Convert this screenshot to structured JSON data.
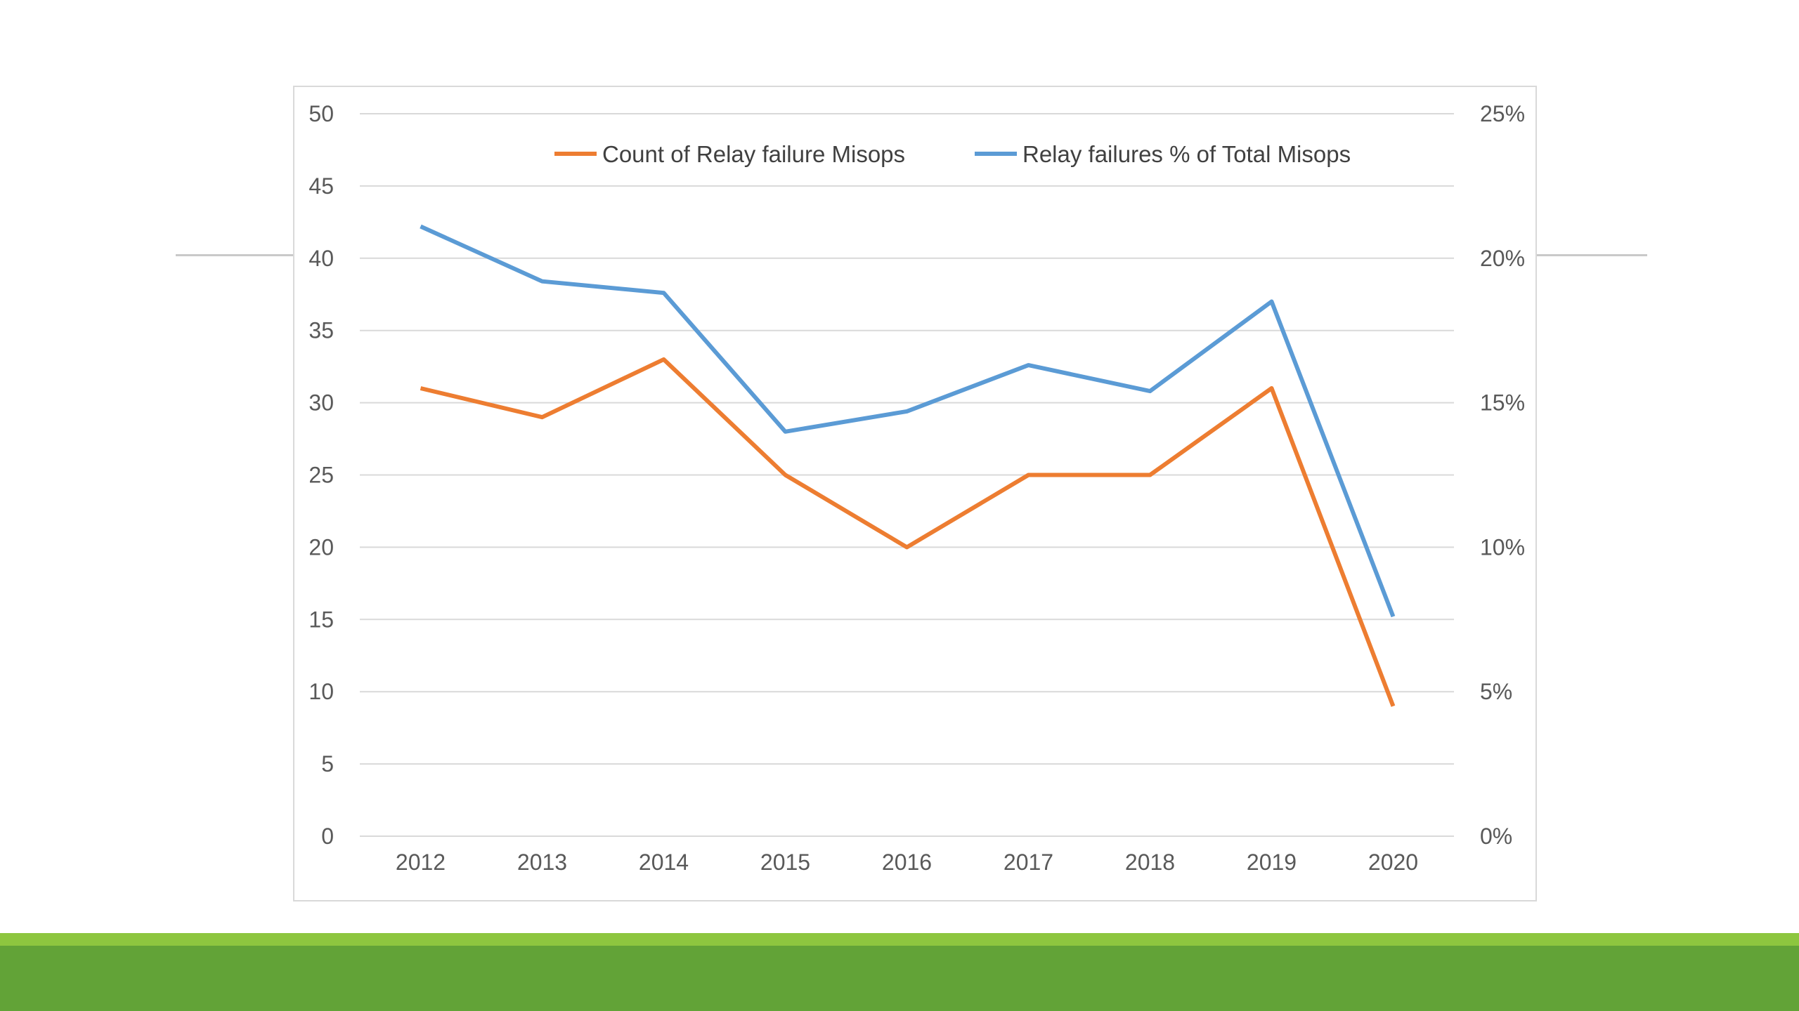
{
  "colors": {
    "background": "#ffffff",
    "band_light": "#8dc63f",
    "band_dark": "#62a337",
    "gridline": "#d9d9d9",
    "axis_text": "#595959"
  },
  "chart_data": {
    "type": "line",
    "title": "",
    "xlabel": "",
    "ylabel": "",
    "y2label": "",
    "grid": true,
    "legend_position": "top",
    "x": [
      "2012",
      "2013",
      "2014",
      "2015",
      "2016",
      "2017",
      "2018",
      "2019",
      "2020"
    ],
    "ylim": [
      0,
      50
    ],
    "y_ticks": [
      0,
      5,
      10,
      15,
      20,
      25,
      30,
      35,
      40,
      45,
      50
    ],
    "y_tick_labels": [
      "0",
      "5",
      "10",
      "15",
      "20",
      "25",
      "30",
      "35",
      "40",
      "45",
      "50"
    ],
    "y2lim": [
      0,
      0.25
    ],
    "y2_ticks": [
      0,
      0.05,
      0.1,
      0.15,
      0.2,
      0.25
    ],
    "y2_tick_labels": [
      "0%",
      "5%",
      "10%",
      "15%",
      "20%",
      "25%"
    ],
    "series": [
      {
        "name": "Count of Relay failure Misops",
        "color": "#ed7d31",
        "axis": "left",
        "values": [
          31,
          29,
          33,
          25,
          20,
          25,
          25,
          31,
          9
        ]
      },
      {
        "name": "Relay failures % of Total Misops",
        "color": "#5b9bd5",
        "axis": "right",
        "values": [
          0.211,
          0.192,
          0.188,
          0.14,
          0.147,
          0.163,
          0.154,
          0.185,
          0.076
        ]
      }
    ]
  }
}
